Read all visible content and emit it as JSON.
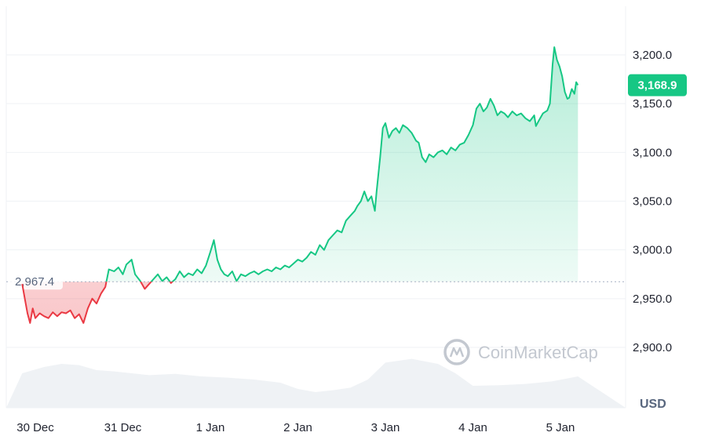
{
  "chart_data": {
    "type": "area",
    "unit": "USD",
    "x_ticks": [
      "30 Dec",
      "31 Dec",
      "1 Jan",
      "2 Jan",
      "3 Jan",
      "4 Jan",
      "5 Jan"
    ],
    "y_ticks": [
      "3,200.0",
      "3,150.0",
      "3,100.0",
      "3,050.0",
      "3,000.0",
      "2,950.0",
      "2,900.0"
    ],
    "y_tick_values": [
      3200,
      3150,
      3100,
      3050,
      3000,
      2950,
      2900
    ],
    "ylim": [
      2875,
      3250
    ],
    "xlim_days": [
      -0.15,
      6.2
    ],
    "reference": {
      "value": 2967.4,
      "label": "2,967.4"
    },
    "current": {
      "value": 3168.9,
      "label": "3,168.9"
    },
    "grid": true,
    "series": [
      {
        "colors": {
          "above": "#16c784",
          "below": "#ea3943",
          "above_fill": "#16c784",
          "below_fill": "#ea3943"
        },
        "points": [
          [
            -0.15,
            2965
          ],
          [
            -0.12,
            2950
          ],
          [
            -0.09,
            2935
          ],
          [
            -0.06,
            2925
          ],
          [
            -0.03,
            2940
          ],
          [
            0.0,
            2930
          ],
          [
            0.05,
            2935
          ],
          [
            0.1,
            2932
          ],
          [
            0.15,
            2930
          ],
          [
            0.2,
            2936
          ],
          [
            0.25,
            2932
          ],
          [
            0.3,
            2936
          ],
          [
            0.35,
            2935
          ],
          [
            0.4,
            2938
          ],
          [
            0.45,
            2930
          ],
          [
            0.5,
            2934
          ],
          [
            0.55,
            2925
          ],
          [
            0.6,
            2940
          ],
          [
            0.65,
            2950
          ],
          [
            0.7,
            2945
          ],
          [
            0.75,
            2955
          ],
          [
            0.8,
            2962
          ],
          [
            0.84,
            2980
          ],
          [
            0.9,
            2978
          ],
          [
            0.95,
            2982
          ],
          [
            1.0,
            2975
          ],
          [
            1.04,
            2985
          ],
          [
            1.1,
            2990
          ],
          [
            1.14,
            2975
          ],
          [
            1.2,
            2968
          ],
          [
            1.25,
            2960
          ],
          [
            1.3,
            2965
          ],
          [
            1.35,
            2970
          ],
          [
            1.4,
            2975
          ],
          [
            1.45,
            2968
          ],
          [
            1.5,
            2972
          ],
          [
            1.55,
            2966
          ],
          [
            1.6,
            2970
          ],
          [
            1.65,
            2978
          ],
          [
            1.7,
            2972
          ],
          [
            1.75,
            2976
          ],
          [
            1.8,
            2974
          ],
          [
            1.85,
            2980
          ],
          [
            1.9,
            2976
          ],
          [
            1.95,
            2984
          ],
          [
            2.0,
            2998
          ],
          [
            2.04,
            3010
          ],
          [
            2.08,
            2990
          ],
          [
            2.12,
            2980
          ],
          [
            2.16,
            2975
          ],
          [
            2.2,
            2973
          ],
          [
            2.25,
            2978
          ],
          [
            2.3,
            2968
          ],
          [
            2.35,
            2975
          ],
          [
            2.4,
            2973
          ],
          [
            2.45,
            2976
          ],
          [
            2.5,
            2978
          ],
          [
            2.55,
            2975
          ],
          [
            2.6,
            2978
          ],
          [
            2.65,
            2980
          ],
          [
            2.7,
            2978
          ],
          [
            2.75,
            2982
          ],
          [
            2.8,
            2980
          ],
          [
            2.85,
            2984
          ],
          [
            2.9,
            2982
          ],
          [
            2.95,
            2986
          ],
          [
            3.0,
            2990
          ],
          [
            3.05,
            2988
          ],
          [
            3.1,
            2992
          ],
          [
            3.15,
            2998
          ],
          [
            3.2,
            2995
          ],
          [
            3.25,
            3005
          ],
          [
            3.3,
            3000
          ],
          [
            3.35,
            3010
          ],
          [
            3.4,
            3015
          ],
          [
            3.45,
            3020
          ],
          [
            3.5,
            3018
          ],
          [
            3.55,
            3030
          ],
          [
            3.6,
            3035
          ],
          [
            3.65,
            3040
          ],
          [
            3.68,
            3045
          ],
          [
            3.72,
            3050
          ],
          [
            3.76,
            3060
          ],
          [
            3.8,
            3050
          ],
          [
            3.84,
            3055
          ],
          [
            3.88,
            3040
          ],
          [
            3.9,
            3060
          ],
          [
            3.94,
            3095
          ],
          [
            3.97,
            3125
          ],
          [
            4.0,
            3130
          ],
          [
            4.04,
            3115
          ],
          [
            4.08,
            3122
          ],
          [
            4.12,
            3125
          ],
          [
            4.16,
            3120
          ],
          [
            4.2,
            3128
          ],
          [
            4.25,
            3125
          ],
          [
            4.3,
            3120
          ],
          [
            4.35,
            3112
          ],
          [
            4.38,
            3110
          ],
          [
            4.42,
            3095
          ],
          [
            4.46,
            3090
          ],
          [
            4.5,
            3098
          ],
          [
            4.55,
            3095
          ],
          [
            4.6,
            3100
          ],
          [
            4.65,
            3102
          ],
          [
            4.7,
            3098
          ],
          [
            4.75,
            3105
          ],
          [
            4.8,
            3102
          ],
          [
            4.85,
            3108
          ],
          [
            4.9,
            3110
          ],
          [
            4.95,
            3118
          ],
          [
            5.0,
            3128
          ],
          [
            5.04,
            3145
          ],
          [
            5.08,
            3150
          ],
          [
            5.12,
            3142
          ],
          [
            5.16,
            3146
          ],
          [
            5.2,
            3155
          ],
          [
            5.24,
            3148
          ],
          [
            5.28,
            3138
          ],
          [
            5.32,
            3142
          ],
          [
            5.36,
            3140
          ],
          [
            5.4,
            3136
          ],
          [
            5.45,
            3142
          ],
          [
            5.5,
            3138
          ],
          [
            5.55,
            3140
          ],
          [
            5.6,
            3135
          ],
          [
            5.65,
            3132
          ],
          [
            5.7,
            3138
          ],
          [
            5.72,
            3127
          ],
          [
            5.75,
            3132
          ],
          [
            5.8,
            3140
          ],
          [
            5.85,
            3143
          ],
          [
            5.88,
            3150
          ],
          [
            5.91,
            3190
          ],
          [
            5.93,
            3208
          ],
          [
            5.96,
            3195
          ],
          [
            5.99,
            3188
          ],
          [
            6.02,
            3178
          ],
          [
            6.05,
            3162
          ],
          [
            6.08,
            3155
          ],
          [
            6.1,
            3156
          ],
          [
            6.13,
            3165
          ],
          [
            6.16,
            3160
          ],
          [
            6.18,
            3172
          ],
          [
            6.2,
            3169
          ]
        ]
      }
    ],
    "volume": [
      [
        -0.15,
        0.55
      ],
      [
        0.1,
        0.65
      ],
      [
        0.3,
        0.7
      ],
      [
        0.5,
        0.68
      ],
      [
        0.7,
        0.6
      ],
      [
        0.9,
        0.58
      ],
      [
        1.1,
        0.55
      ],
      [
        1.3,
        0.52
      ],
      [
        1.6,
        0.54
      ],
      [
        1.9,
        0.5
      ],
      [
        2.2,
        0.48
      ],
      [
        2.5,
        0.45
      ],
      [
        2.8,
        0.4
      ],
      [
        3.0,
        0.3
      ],
      [
        3.2,
        0.25
      ],
      [
        3.4,
        0.28
      ],
      [
        3.6,
        0.32
      ],
      [
        3.8,
        0.45
      ],
      [
        4.0,
        0.72
      ],
      [
        4.3,
        0.78
      ],
      [
        4.6,
        0.7
      ],
      [
        4.8,
        0.55
      ],
      [
        5.0,
        0.35
      ],
      [
        5.3,
        0.36
      ],
      [
        5.6,
        0.38
      ],
      [
        5.9,
        0.42
      ],
      [
        6.2,
        0.5
      ]
    ]
  },
  "watermark": {
    "text": "CoinMarketCap",
    "icon": "coinmarketcap-logo-icon"
  }
}
